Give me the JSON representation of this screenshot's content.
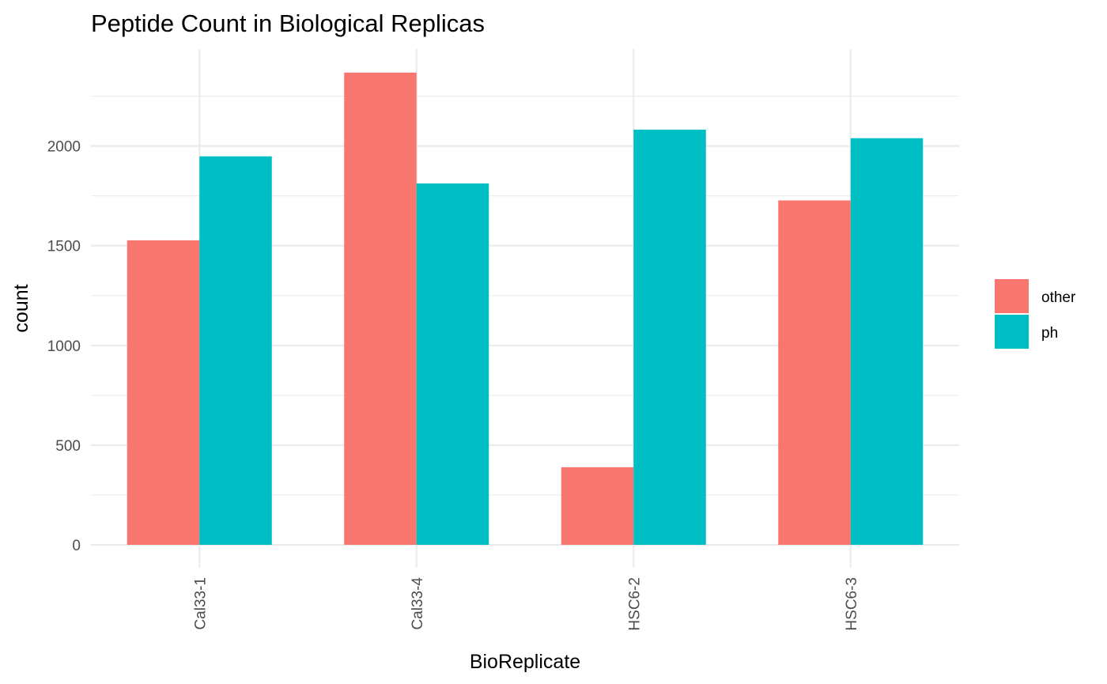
{
  "chart_data": {
    "type": "bar",
    "title": "Peptide Count in Biological Replicas",
    "xlabel": "BioReplicate",
    "ylabel": "count",
    "categories": [
      "Cal33-1",
      "Cal33-4",
      "HSC6-2",
      "HSC6-3"
    ],
    "series": [
      {
        "name": "other",
        "color": "#F8766D",
        "values": [
          1527,
          2368,
          389,
          1727
        ]
      },
      {
        "name": "ph",
        "color": "#00BFC4",
        "values": [
          1948,
          1812,
          2082,
          2039
        ]
      }
    ],
    "ylim": [
      0,
      2500
    ],
    "yticks": [
      0,
      500,
      1000,
      1500,
      2000
    ],
    "grid": true,
    "legend_position": "right"
  }
}
